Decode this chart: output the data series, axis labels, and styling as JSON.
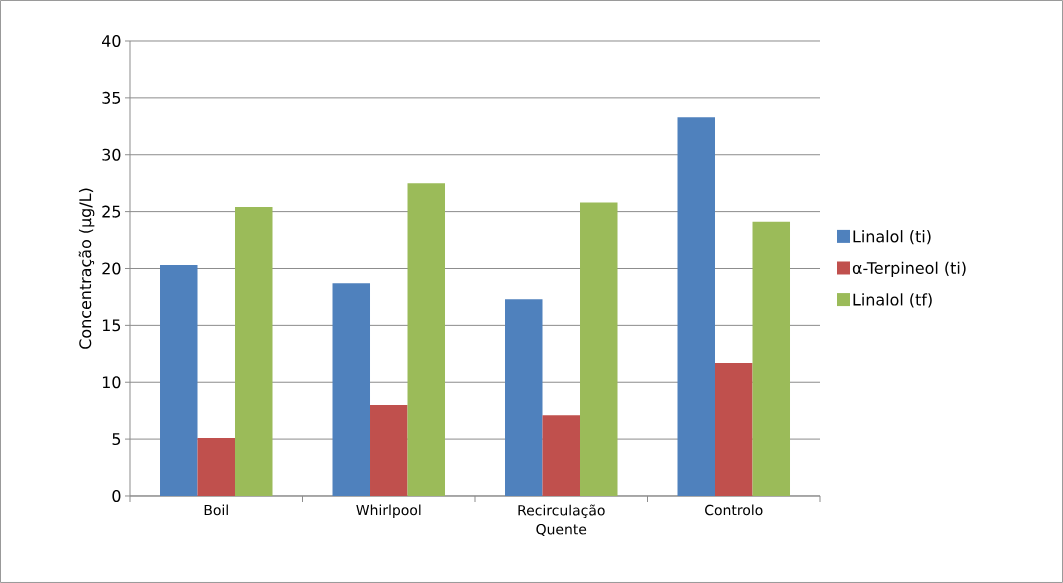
{
  "chart_data": {
    "type": "bar",
    "ylabel": "Concentração (µg/L)",
    "categories": [
      "Boil",
      "Whirlpool",
      "Recirculação Quente",
      "Controlo"
    ],
    "series": [
      {
        "name": "Linalol (ti)",
        "color": "#4f81bd",
        "values": [
          20.3,
          18.7,
          17.3,
          33.3
        ]
      },
      {
        "name": "α-Terpineol (ti)",
        "color": "#c0504d",
        "values": [
          5.1,
          8.0,
          7.1,
          11.7
        ]
      },
      {
        "name": "Linalol (tf)",
        "color": "#9bbb59",
        "values": [
          25.4,
          27.5,
          25.8,
          24.1
        ]
      }
    ],
    "ylim": [
      0,
      40
    ],
    "yticks": [
      0,
      5,
      10,
      15,
      20,
      25,
      30,
      35,
      40
    ],
    "grid": "y",
    "legend": "right"
  }
}
